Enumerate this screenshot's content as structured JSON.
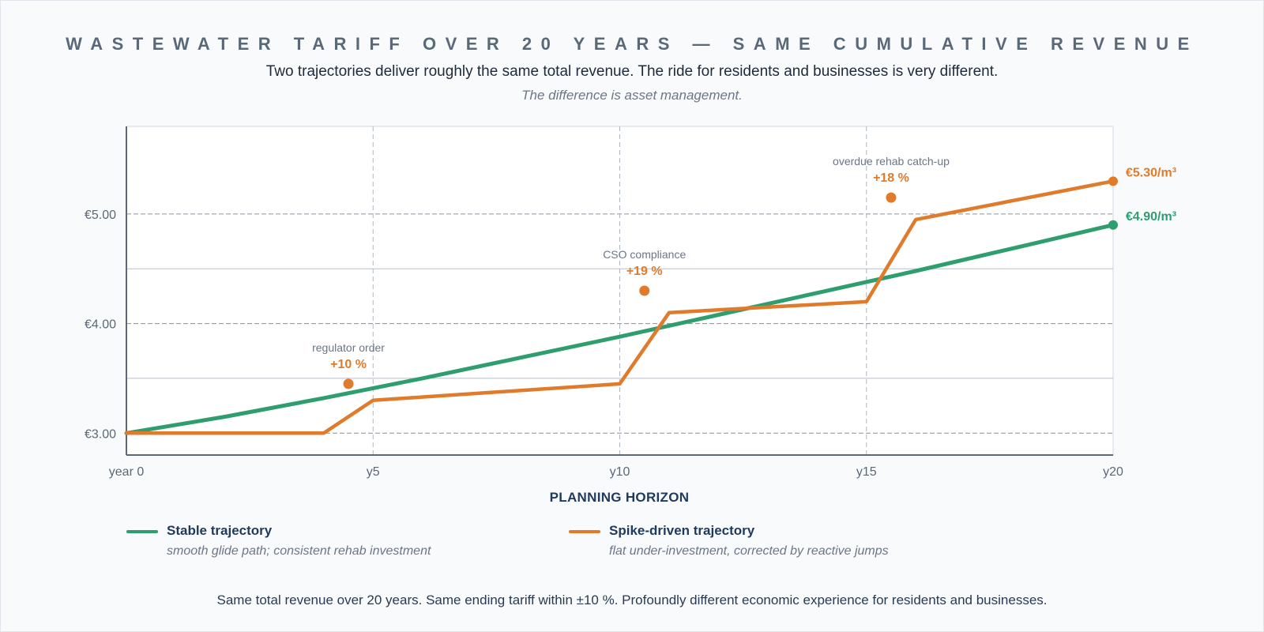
{
  "header": {
    "title": "WASTEWATER TARIFF OVER 20 YEARS — SAME CUMULATIVE REVENUE",
    "subtitle": "Two trajectories deliver roughly the same total revenue. The ride for residents and businesses is very different.",
    "note": "The difference is asset management."
  },
  "footer": {
    "text": "Same total revenue over 20 years. Same ending tariff within ±10 %. Profoundly different economic experience for residents and businesses."
  },
  "legend": [
    {
      "name": "Stable trajectory",
      "desc": "smooth glide path; consistent rehab investment",
      "color": "#2e9e6e"
    },
    {
      "name": "Spike-driven trajectory",
      "desc": "flat under-investment, corrected by reactive jumps",
      "color": "#e07b2c"
    }
  ],
  "chart_data": {
    "type": "line",
    "xlabel": "PLANNING HORIZON",
    "ylabel": "",
    "xlim": [
      0,
      20
    ],
    "ylim": [
      2.8,
      5.8
    ],
    "x_ticks": [
      {
        "value": 0,
        "label": "year 0"
      },
      {
        "value": 5,
        "label": "y5"
      },
      {
        "value": 10,
        "label": "y10"
      },
      {
        "value": 15,
        "label": "y15"
      },
      {
        "value": 20,
        "label": "y20"
      }
    ],
    "y_ticks": [
      {
        "value": 3.0,
        "label": "€3.00"
      },
      {
        "value": 4.0,
        "label": "€4.00"
      },
      {
        "value": 5.0,
        "label": "€5.00"
      }
    ],
    "y_grid_minor": [
      3.5,
      4.5
    ],
    "grid": true,
    "series": [
      {
        "name": "Stable trajectory",
        "color": "#2e9e6e",
        "x": [
          0,
          2,
          4,
          6,
          8,
          10,
          12,
          14,
          16,
          18,
          20
        ],
        "y": [
          3.0,
          3.15,
          3.32,
          3.5,
          3.69,
          3.88,
          4.08,
          4.28,
          4.48,
          4.69,
          4.9
        ],
        "end_label": "€4.90/m³"
      },
      {
        "name": "Spike-driven trajectory",
        "color": "#e07b2c",
        "x": [
          0,
          4,
          5,
          10,
          11,
          15,
          16,
          20
        ],
        "y": [
          3.0,
          3.0,
          3.3,
          3.45,
          4.1,
          4.2,
          4.95,
          5.3
        ],
        "end_label": "€5.30/m³"
      }
    ],
    "annotations": [
      {
        "x": 4.5,
        "y": 3.45,
        "label": "regulator order",
        "value": "+10 %"
      },
      {
        "x": 10.5,
        "y": 4.3,
        "label": "CSO compliance",
        "value": "+19 %"
      },
      {
        "x": 15.5,
        "y": 5.15,
        "label": "overdue rehab catch-up",
        "value": "+18 %"
      }
    ],
    "legend_position": "bottom"
  }
}
